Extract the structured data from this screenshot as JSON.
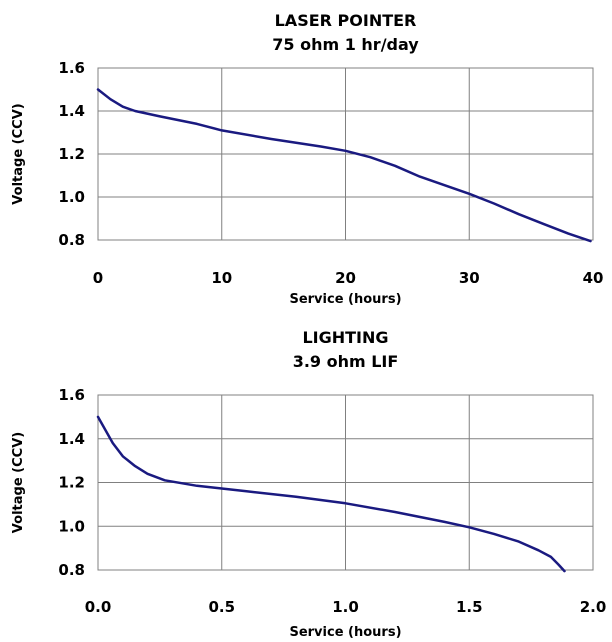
{
  "chart_data": [
    {
      "type": "line",
      "title": "LASER POINTER",
      "subtitle": "75 ohm 1 hr/day",
      "xlabel": "Service (hours)",
      "ylabel": "Voltage (CCV)",
      "xlim": [
        0,
        40
      ],
      "ylim": [
        0.8,
        1.6
      ],
      "xticks": [
        "0",
        "10",
        "20",
        "30",
        "40"
      ],
      "yticks": [
        "0.8",
        "1.0",
        "1.2",
        "1.4",
        "1.6"
      ],
      "grid": true,
      "line_color": "#1a1a80",
      "series": [
        {
          "x": [
            0,
            1,
            2,
            3,
            5,
            8,
            10,
            14,
            18,
            20,
            22,
            24,
            26,
            28,
            30,
            32,
            34,
            36,
            38,
            39.8
          ],
          "y": [
            1.5,
            1.455,
            1.42,
            1.4,
            1.375,
            1.34,
            1.31,
            1.27,
            1.235,
            1.215,
            1.185,
            1.145,
            1.095,
            1.055,
            1.015,
            0.97,
            0.92,
            0.875,
            0.83,
            0.795
          ]
        }
      ]
    },
    {
      "type": "line",
      "title": "LIGHTING",
      "subtitle": "3.9 ohm LIF",
      "xlabel": "Service (hours)",
      "ylabel": "Voltage (CCV)",
      "xlim": [
        0.0,
        2.0
      ],
      "ylim": [
        0.8,
        1.6
      ],
      "xticks": [
        "0.0",
        "0.5",
        "1.0",
        "1.5",
        "2.0"
      ],
      "yticks": [
        "0.8",
        "1.0",
        "1.2",
        "1.4",
        "1.6"
      ],
      "grid": true,
      "line_color": "#1a1a80",
      "series": [
        {
          "x": [
            0,
            0.03,
            0.06,
            0.1,
            0.15,
            0.2,
            0.27,
            0.4,
            0.6,
            0.8,
            1.0,
            1.2,
            1.4,
            1.5,
            1.6,
            1.7,
            1.78,
            1.83,
            1.86,
            1.885
          ],
          "y": [
            1.5,
            1.44,
            1.38,
            1.32,
            1.275,
            1.24,
            1.21,
            1.185,
            1.16,
            1.135,
            1.105,
            1.065,
            1.02,
            0.995,
            0.965,
            0.93,
            0.89,
            0.86,
            0.825,
            0.795
          ]
        }
      ]
    }
  ]
}
